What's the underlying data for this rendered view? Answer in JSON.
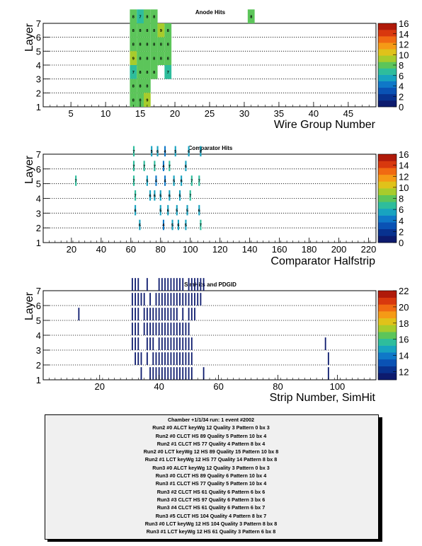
{
  "panels": [
    {
      "title": "Anode Hits",
      "xlabel": "Wire Group Number",
      "ylabel": "Layer",
      "xticks": [
        "5",
        "10",
        "15",
        "20",
        "25",
        "30",
        "35",
        "40",
        "45"
      ],
      "yticks": [
        "1",
        "2",
        "3",
        "4",
        "5",
        "6",
        "7"
      ],
      "zticks": [
        "0",
        "2",
        "4",
        "6",
        "8",
        "10",
        "12",
        "14",
        "16"
      ]
    },
    {
      "title": "Comparator Hits",
      "xlabel": "Comparator Halfstrip",
      "ylabel": "Layer",
      "xticks": [
        "20",
        "40",
        "60",
        "80",
        "100",
        "120",
        "140",
        "160",
        "180",
        "200",
        "220"
      ],
      "yticks": [
        "1",
        "2",
        "3",
        "4",
        "5",
        "6",
        "7"
      ],
      "zticks": [
        "0",
        "2",
        "4",
        "6",
        "8",
        "10",
        "12",
        "14",
        "16"
      ]
    },
    {
      "title": "SimHits and PDGID",
      "xlabel": "Strip Number, SimHit",
      "ylabel": "Layer",
      "xticks": [
        "20",
        "40",
        "60",
        "80",
        "100"
      ],
      "yticks": [
        "1",
        "2",
        "3",
        "4",
        "5",
        "6",
        "7"
      ],
      "zticks": [
        "12",
        "14",
        "16",
        "18",
        "20",
        "22"
      ]
    }
  ],
  "colors": {
    "hit_green": "#5bc24a",
    "hit_teal": "#2fb8a0",
    "hit_navy": "#0a1a66",
    "palette": [
      "#0d1b6e",
      "#08328f",
      "#0a52b4",
      "#0f78c8",
      "#18a3c0",
      "#2ebd9c",
      "#5cc55a",
      "#a7cc2c",
      "#e0c21a",
      "#f59a16",
      "#f06a12",
      "#d8380e",
      "#b01a0a"
    ]
  },
  "chart_data": [
    {
      "type": "heatmap",
      "title": "Anode Hits",
      "xlabel": "Wire Group Number",
      "ylabel": "Layer",
      "xlim": [
        1,
        49
      ],
      "ylim": [
        1,
        7
      ],
      "zlim": [
        0,
        16
      ],
      "cells": [
        {
          "x": 14,
          "y": 7,
          "v": 8
        },
        {
          "x": 15,
          "y": 7,
          "v": 7
        },
        {
          "x": 16,
          "y": 7,
          "v": 8
        },
        {
          "x": 17,
          "y": 7,
          "v": 8
        },
        {
          "x": 31,
          "y": 7,
          "v": 8
        },
        {
          "x": 14,
          "y": 6,
          "v": 8
        },
        {
          "x": 15,
          "y": 6,
          "v": 8
        },
        {
          "x": 16,
          "y": 6,
          "v": 8
        },
        {
          "x": 17,
          "y": 6,
          "v": 8
        },
        {
          "x": 18,
          "y": 6,
          "v": 9
        },
        {
          "x": 19,
          "y": 6,
          "v": 8
        },
        {
          "x": 14,
          "y": 5,
          "v": 8
        },
        {
          "x": 15,
          "y": 5,
          "v": 8
        },
        {
          "x": 16,
          "y": 5,
          "v": 8
        },
        {
          "x": 17,
          "y": 5,
          "v": 8
        },
        {
          "x": 18,
          "y": 5,
          "v": 8
        },
        {
          "x": 19,
          "y": 5,
          "v": 8
        },
        {
          "x": 14,
          "y": 4,
          "v": 9
        },
        {
          "x": 15,
          "y": 4,
          "v": 8
        },
        {
          "x": 16,
          "y": 4,
          "v": 8
        },
        {
          "x": 17,
          "y": 4,
          "v": 8
        },
        {
          "x": 18,
          "y": 4,
          "v": 8
        },
        {
          "x": 19,
          "y": 4,
          "v": 8
        },
        {
          "x": 14,
          "y": 3,
          "v": 7
        },
        {
          "x": 15,
          "y": 3,
          "v": 8
        },
        {
          "x": 16,
          "y": 3,
          "v": 8
        },
        {
          "x": 17,
          "y": 3,
          "v": 8
        },
        {
          "x": 19,
          "y": 3,
          "v": 7
        },
        {
          "x": 14,
          "y": 2,
          "v": 8
        },
        {
          "x": 15,
          "y": 2,
          "v": 8
        },
        {
          "x": 16,
          "y": 2,
          "v": 8
        },
        {
          "x": 14,
          "y": 1,
          "v": 8
        },
        {
          "x": 15,
          "y": 1,
          "v": 8
        },
        {
          "x": 16,
          "y": 1,
          "v": 9
        }
      ]
    },
    {
      "type": "heatmap",
      "title": "Comparator Hits",
      "xlabel": "Comparator Halfstrip",
      "ylabel": "Layer",
      "xlim": [
        1,
        225
      ],
      "ylim": [
        1,
        7
      ],
      "zlim": [
        0,
        16
      ],
      "cells": [
        {
          "x": 62,
          "y": 7,
          "v": 7
        },
        {
          "x": 74,
          "y": 7,
          "v": 5
        },
        {
          "x": 78,
          "y": 7,
          "v": 6
        },
        {
          "x": 83,
          "y": 7,
          "v": 4
        },
        {
          "x": 90,
          "y": 7,
          "v": 5
        },
        {
          "x": 99,
          "y": 7,
          "v": 6
        },
        {
          "x": 107,
          "y": 7,
          "v": 6
        },
        {
          "x": 62,
          "y": 6,
          "v": 7
        },
        {
          "x": 69,
          "y": 6,
          "v": 7
        },
        {
          "x": 76,
          "y": 6,
          "v": 7
        },
        {
          "x": 82,
          "y": 6,
          "v": 4
        },
        {
          "x": 86,
          "y": 6,
          "v": 7
        },
        {
          "x": 97,
          "y": 6,
          "v": 6
        },
        {
          "x": 23,
          "y": 5,
          "v": 7
        },
        {
          "x": 62,
          "y": 5,
          "v": 7
        },
        {
          "x": 71,
          "y": 5,
          "v": 5
        },
        {
          "x": 77,
          "y": 5,
          "v": 4
        },
        {
          "x": 83,
          "y": 5,
          "v": 4
        },
        {
          "x": 89,
          "y": 5,
          "v": 5
        },
        {
          "x": 94,
          "y": 5,
          "v": 6
        },
        {
          "x": 101,
          "y": 5,
          "v": 7
        },
        {
          "x": 106,
          "y": 5,
          "v": 7
        },
        {
          "x": 63,
          "y": 4,
          "v": 7
        },
        {
          "x": 73,
          "y": 4,
          "v": 6
        },
        {
          "x": 76,
          "y": 4,
          "v": 6
        },
        {
          "x": 80,
          "y": 4,
          "v": 5
        },
        {
          "x": 86,
          "y": 4,
          "v": 6
        },
        {
          "x": 93,
          "y": 4,
          "v": 5
        },
        {
          "x": 100,
          "y": 4,
          "v": 7
        },
        {
          "x": 63,
          "y": 3,
          "v": 6
        },
        {
          "x": 80,
          "y": 3,
          "v": 5
        },
        {
          "x": 85,
          "y": 3,
          "v": 6
        },
        {
          "x": 91,
          "y": 3,
          "v": 5
        },
        {
          "x": 98,
          "y": 3,
          "v": 5
        },
        {
          "x": 106,
          "y": 3,
          "v": 6
        },
        {
          "x": 66,
          "y": 2,
          "v": 6
        },
        {
          "x": 82,
          "y": 2,
          "v": 4
        },
        {
          "x": 88,
          "y": 2,
          "v": 5
        },
        {
          "x": 92,
          "y": 2,
          "v": 6
        },
        {
          "x": 97,
          "y": 2,
          "v": 5
        },
        {
          "x": 107,
          "y": 2,
          "v": 7
        }
      ]
    },
    {
      "type": "heatmap",
      "title": "SimHits and PDGID",
      "xlabel": "Strip Number, SimHit",
      "ylabel": "Layer",
      "xlim": [
        1,
        113
      ],
      "ylim": [
        1,
        7
      ],
      "zlim": [
        11,
        22
      ],
      "value_all_hits": 11,
      "rows": [
        {
          "y": 7,
          "x": [
            31,
            32,
            33,
            36,
            40,
            41,
            42,
            43,
            44,
            45,
            46,
            47,
            48,
            50,
            51,
            52,
            53,
            54,
            55
          ]
        },
        {
          "y": 6,
          "x": [
            31,
            32,
            33,
            34,
            35,
            37,
            39,
            40,
            41,
            42,
            43,
            44,
            45,
            46,
            47,
            48,
            49,
            50,
            51,
            52,
            53,
            54
          ]
        },
        {
          "y": 5,
          "x": [
            13,
            31,
            32,
            33,
            35,
            36,
            37,
            38,
            39,
            40,
            41,
            42,
            43,
            44,
            45,
            46,
            48,
            50,
            51,
            52
          ]
        },
        {
          "y": 4,
          "x": [
            31,
            32,
            33,
            35,
            36,
            37,
            38,
            39,
            40,
            41,
            42,
            43,
            44,
            45,
            46,
            47,
            48,
            49,
            50
          ]
        },
        {
          "y": 3,
          "x": [
            31,
            32,
            33,
            36,
            37,
            38,
            40,
            41,
            42,
            43,
            44,
            45,
            46,
            47,
            48,
            49,
            50,
            51,
            96
          ]
        },
        {
          "y": 2,
          "x": [
            32,
            33,
            34,
            36,
            38,
            39,
            40,
            41,
            42,
            43,
            44,
            45,
            46,
            47,
            48,
            49,
            50,
            51,
            97
          ]
        },
        {
          "y": 1,
          "x": [
            34,
            37,
            38,
            39,
            40,
            41,
            42,
            43,
            44,
            45,
            46,
            47,
            48,
            49,
            50,
            51,
            55,
            97
          ]
        }
      ]
    }
  ],
  "info": {
    "lines": [
      "Chamber +1/1/34  run: 1  event #2002",
      "Run2 #0 ALCT keyWg 12 Quality 3 Pattern 0 bx 3",
      "Run2 #0 CLCT HS 89 Quality 5 Pattern 10 bx 4",
      "Run2 #1 CLCT HS 77 Quality 4 Pattern 8 bx 4",
      "Run2 #0 LCT keyWg 12 HS 89 Quality 15 Pattern 10 bx 8",
      "Run2 #1 LCT keyWg 12 HS 77 Quality 14 Pattern 8 bx 8",
      "Run3 #0 ALCT keyWg 12 Quality 3 Pattern 0 bx 3",
      "Run3 #0 CLCT HS 89 Quality 6 Pattern 10 bx 4",
      "Run3 #1 CLCT HS 77 Quality 5 Pattern 10 bx 4",
      "Run3 #2 CLCT HS 61 Quality 6 Pattern 6 bx 6",
      "Run3 #3 CLCT HS 97 Quality 6 Pattern 3 bx 6",
      "Run3 #4 CLCT HS 61 Quality 6 Pattern 6 bx 7",
      "Run3 #5 CLCT HS 104 Quality 4 Pattern 8 bx 7",
      "Run3 #0 LCT keyWg 12 HS 104 Quality 3 Pattern 8 bx 8",
      "Run3 #1 LCT keyWg 12 HS 61 Quality 3 Pattern 6 bx 8"
    ]
  }
}
